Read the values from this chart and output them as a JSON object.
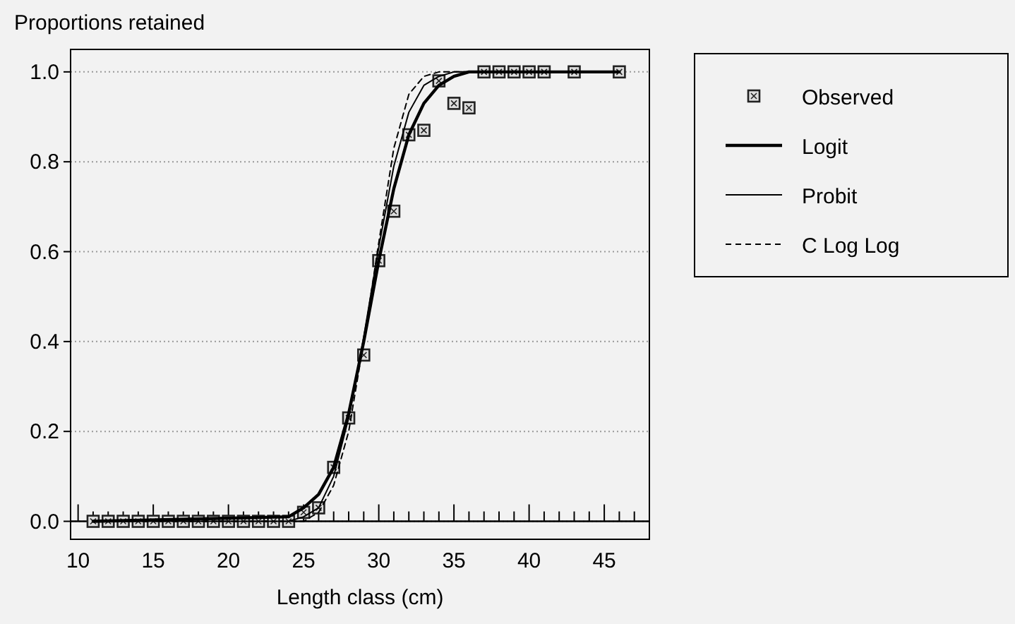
{
  "chart_data": {
    "type": "line",
    "ylabel": "Proportions retained",
    "xlabel": "Length class (cm)",
    "xlim": [
      9.5,
      48
    ],
    "ylim": [
      -0.04,
      1.05
    ],
    "xticks": [
      10,
      {
        "value": 11,
        "label": null
      },
      {
        "value": 12,
        "label": null
      },
      {
        "value": 13,
        "label": null
      },
      {
        "value": 14,
        "label": null
      },
      15,
      {
        "value": 16,
        "label": null
      },
      {
        "value": 17,
        "label": null
      },
      {
        "value": 18,
        "label": null
      },
      {
        "value": 19,
        "label": null
      },
      20,
      {
        "value": 21,
        "label": null
      },
      {
        "value": 22,
        "label": null
      },
      {
        "value": 23,
        "label": null
      },
      {
        "value": 24,
        "label": null
      },
      25,
      {
        "value": 26,
        "label": null
      },
      {
        "value": 27,
        "label": null
      },
      {
        "value": 28,
        "label": null
      },
      {
        "value": 29,
        "label": null
      },
      30,
      {
        "value": 31,
        "label": null
      },
      {
        "value": 32,
        "label": null
      },
      {
        "value": 33,
        "label": null
      },
      {
        "value": 34,
        "label": null
      },
      35,
      {
        "value": 36,
        "label": null
      },
      {
        "value": 37,
        "label": null
      },
      {
        "value": 38,
        "label": null
      },
      {
        "value": 39,
        "label": null
      },
      40,
      {
        "value": 41,
        "label": null
      },
      {
        "value": 42,
        "label": null
      },
      {
        "value": 43,
        "label": null
      },
      {
        "value": 44,
        "label": null
      },
      45,
      {
        "value": 46,
        "label": null
      },
      {
        "value": 47,
        "label": null
      }
    ],
    "yticks": [
      {
        "value": 0,
        "label": "0.0"
      },
      0.2,
      0.4,
      0.6,
      0.8,
      {
        "value": 1,
        "label": "1.0"
      }
    ],
    "grid": "y",
    "legend": "right",
    "series": [
      {
        "name": "Observed",
        "type": "scatter",
        "marker": "square",
        "color": "#222222",
        "x": [
          11,
          12,
          13,
          14,
          15,
          16,
          17,
          18,
          19,
          20,
          21,
          22,
          23,
          24,
          25,
          26,
          27,
          28,
          29,
          30,
          31,
          32,
          33,
          34,
          35,
          36,
          37,
          38,
          39,
          40,
          41,
          43,
          46
        ],
        "values": [
          0,
          0,
          0,
          0,
          0,
          0,
          0,
          0,
          0,
          0,
          0,
          0,
          0,
          0,
          0.02,
          0.03,
          0.12,
          0.23,
          0.37,
          0.58,
          0.69,
          0.86,
          0.87,
          0.98,
          0.93,
          0.92,
          1,
          1,
          1,
          1,
          1,
          1,
          1
        ]
      },
      {
        "name": "Logit",
        "line_style": "solid",
        "color": "#000000",
        "x": [
          11,
          24,
          25,
          26,
          27,
          28,
          29,
          30,
          31,
          32,
          33,
          34,
          35,
          36,
          46
        ],
        "values": [
          0,
          0.01,
          0.03,
          0.06,
          0.12,
          0.24,
          0.4,
          0.58,
          0.74,
          0.86,
          0.93,
          0.97,
          0.99,
          1,
          1
        ]
      },
      {
        "name": "Probit",
        "line_style": "solid",
        "color": "#000000",
        "x": [
          11,
          24,
          25,
          26,
          27,
          28,
          29,
          30,
          31,
          32,
          33,
          34,
          35,
          46
        ],
        "values": [
          0,
          0,
          0.01,
          0.03,
          0.1,
          0.23,
          0.41,
          0.61,
          0.79,
          0.91,
          0.97,
          0.99,
          1,
          1
        ]
      },
      {
        "name": "C Log Log",
        "line_style": "dashed",
        "color": "#000000",
        "x": [
          11,
          25,
          26,
          27,
          28,
          29,
          30,
          31,
          32,
          33,
          34,
          46
        ],
        "values": [
          0,
          0,
          0.02,
          0.08,
          0.2,
          0.4,
          0.62,
          0.83,
          0.95,
          0.99,
          1,
          1
        ]
      }
    ]
  }
}
